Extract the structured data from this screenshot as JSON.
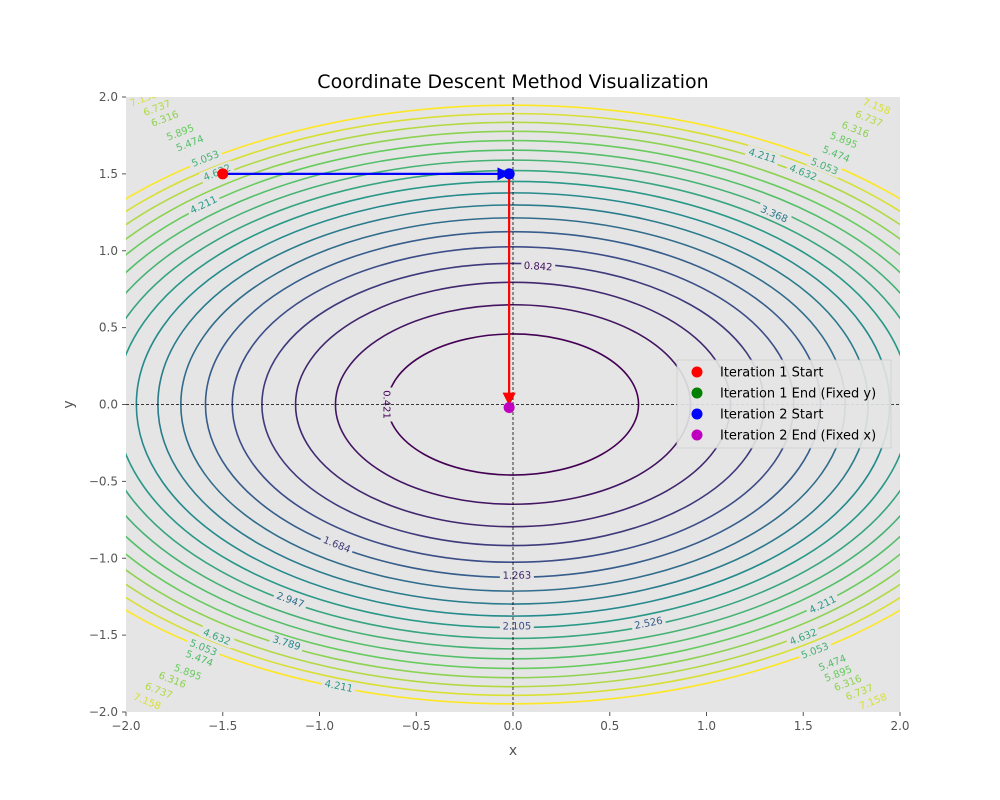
{
  "chart_data": {
    "type": "contour",
    "title": "Coordinate Descent Method Visualization",
    "xlabel": "x",
    "ylabel": "y",
    "xlim": [
      -2.0,
      2.0
    ],
    "ylim": [
      -2.0,
      2.0
    ],
    "x_ticks": [
      "−2.0",
      "−1.5",
      "−1.0",
      "−0.5",
      "0.0",
      "0.5",
      "1.0",
      "1.5",
      "2.0"
    ],
    "y_ticks": [
      "−2.0",
      "−1.5",
      "−1.0",
      "−0.5",
      "0.0",
      "0.5",
      "1.0",
      "1.5",
      "2.0"
    ],
    "grid": false,
    "background_color": "#e5e5e5",
    "function": "f(x, y) = x^2 + 2*y^2",
    "contour_levels": [
      0.421,
      0.842,
      1.263,
      1.684,
      2.105,
      2.526,
      2.947,
      3.368,
      3.789,
      4.211,
      4.632,
      5.053,
      5.474,
      5.895,
      6.316,
      6.737,
      7.158,
      7.579
    ],
    "contour_labels": [
      {
        "text": "0.421",
        "x": -0.65,
        "y": 0.0
      },
      {
        "text": "0.842",
        "x": 0.13,
        "y": 0.9
      },
      {
        "text": "1.263",
        "x": 0.02,
        "y": -1.11
      },
      {
        "text": "1.684",
        "x": -0.91,
        "y": -0.91
      },
      {
        "text": "2.105",
        "x": 0.02,
        "y": -1.44
      },
      {
        "text": "2.526",
        "x": 0.7,
        "y": -1.42
      },
      {
        "text": "2.947",
        "x": -1.15,
        "y": -1.27
      },
      {
        "text": "3.368",
        "x": 1.35,
        "y": 1.24
      },
      {
        "text": "3.789",
        "x": -1.17,
        "y": -1.55
      },
      {
        "text": "4.211",
        "x": 1.29,
        "y": 1.62
      },
      {
        "text": "4.211",
        "x": -1.6,
        "y": 1.3
      },
      {
        "text": "4.211",
        "x": 1.6,
        "y": -1.3
      },
      {
        "text": "4.211",
        "x": -0.9,
        "y": -1.83
      },
      {
        "text": "4.632",
        "x": 1.5,
        "y": 1.51
      },
      {
        "text": "4.632",
        "x": -1.53,
        "y": 1.51
      },
      {
        "text": "4.632",
        "x": -1.53,
        "y": -1.51
      },
      {
        "text": "4.632",
        "x": 1.5,
        "y": -1.51
      },
      {
        "text": "5.053",
        "x": 1.61,
        "y": 1.55
      },
      {
        "text": "5.053",
        "x": -1.59,
        "y": 1.6
      },
      {
        "text": "5.053",
        "x": -1.6,
        "y": -1.58
      },
      {
        "text": "5.053",
        "x": 1.56,
        "y": -1.6
      },
      {
        "text": "5.474",
        "x": 1.67,
        "y": 1.63
      },
      {
        "text": "5.474",
        "x": -1.67,
        "y": 1.7
      },
      {
        "text": "5.474",
        "x": -1.62,
        "y": -1.65
      },
      {
        "text": "5.474",
        "x": 1.65,
        "y": -1.68
      },
      {
        "text": "5.895",
        "x": 1.71,
        "y": 1.72
      },
      {
        "text": "5.895",
        "x": -1.72,
        "y": 1.77
      },
      {
        "text": "5.895",
        "x": -1.68,
        "y": -1.74
      },
      {
        "text": "5.895",
        "x": 1.68,
        "y": -1.75
      },
      {
        "text": "6.316",
        "x": 1.77,
        "y": 1.79
      },
      {
        "text": "6.316",
        "x": -1.8,
        "y": 1.86
      },
      {
        "text": "6.316",
        "x": -1.76,
        "y": -1.79
      },
      {
        "text": "6.316",
        "x": 1.73,
        "y": -1.81
      },
      {
        "text": "6.737",
        "x": 1.84,
        "y": 1.86
      },
      {
        "text": "6.737",
        "x": -1.84,
        "y": 1.93
      },
      {
        "text": "6.737",
        "x": -1.83,
        "y": -1.86
      },
      {
        "text": "6.737",
        "x": 1.79,
        "y": -1.87
      },
      {
        "text": "7.158",
        "x": 1.88,
        "y": 1.94
      },
      {
        "text": "7.158",
        "x": -1.91,
        "y": 1.99
      },
      {
        "text": "7.158",
        "x": -1.89,
        "y": -1.93
      },
      {
        "text": "7.158",
        "x": 1.86,
        "y": -1.93
      }
    ],
    "path": [
      {
        "from": [
          -1.5,
          1.5
        ],
        "to": [
          -0.02,
          1.5
        ],
        "color": "#0000ff"
      },
      {
        "from": [
          -0.02,
          1.5
        ],
        "to": [
          -0.02,
          0.0
        ],
        "color": "#ff0000"
      }
    ],
    "points": [
      {
        "name": "Iteration 1 Start",
        "x": -1.5,
        "y": 1.5,
        "color": "#ff0000"
      },
      {
        "name": "Iteration 1 End (Fixed y)",
        "x": -0.02,
        "y": 1.5,
        "color": "#008000"
      },
      {
        "name": "Iteration 2 Start",
        "x": -0.02,
        "y": 1.5,
        "color": "#0000ff"
      },
      {
        "name": "Iteration 2 End (Fixed x)",
        "x": -0.02,
        "y": -0.02,
        "color": "#bf00bf"
      }
    ],
    "legend": {
      "position": "center-right",
      "items": [
        {
          "label": "Iteration 1 Start",
          "color": "#ff0000"
        },
        {
          "label": "Iteration 1 End (Fixed y)",
          "color": "#008000"
        },
        {
          "label": "Iteration 2 Start",
          "color": "#0000ff"
        },
        {
          "label": "Iteration 2 End (Fixed x)",
          "color": "#bf00bf"
        }
      ]
    },
    "colormap": "viridis"
  }
}
